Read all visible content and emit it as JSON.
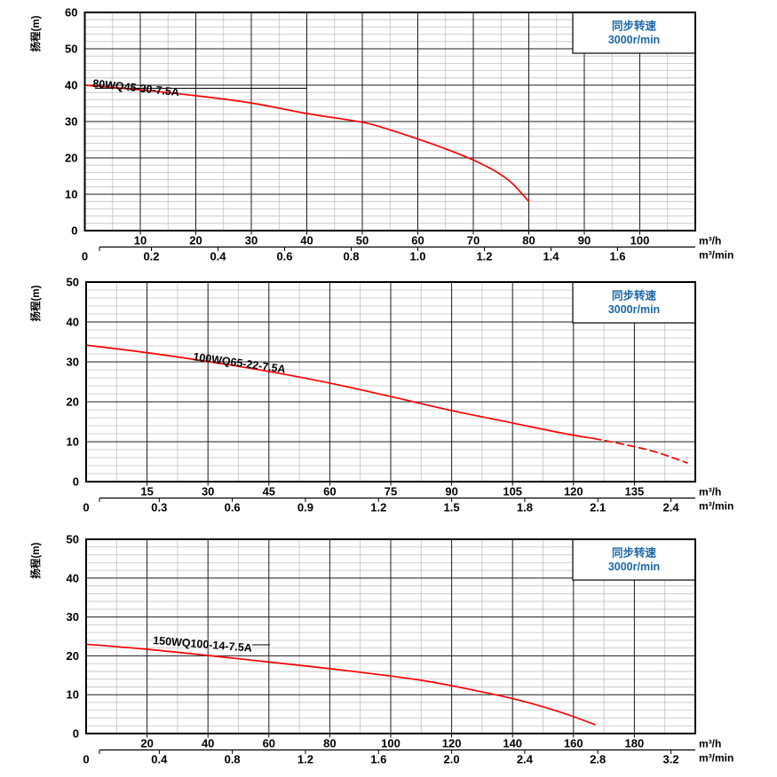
{
  "page": {
    "background": "#ffffff"
  },
  "colors": {
    "curve_red": "#ff0000",
    "grid_major": "#1c1c1c",
    "grid_minor": "#c0c0c0",
    "border": "#000000",
    "accent_blue": "#1a67a5",
    "text": "#000000"
  },
  "chart_data": [
    {
      "type": "line",
      "title": "80WQ45-30-7.5A",
      "ylabel": "扬程(m)",
      "xlabel_primary": "m³/h",
      "xlabel_secondary": "m³/min",
      "annotation": {
        "line1": "同步转速",
        "line2": "3000r/min"
      },
      "xlim": [
        0,
        110
      ],
      "ylim": [
        0,
        60
      ],
      "x_major_step": 10,
      "x_minor_step": 5,
      "y_major_step": 10,
      "y_minor_step": 2,
      "y_ticks": [
        60,
        50,
        40,
        30,
        20,
        10,
        0
      ],
      "x_ticks_primary": [
        10,
        20,
        30,
        40,
        50,
        60,
        70,
        80,
        90,
        100
      ],
      "x_ticks_secondary": [
        "0",
        "0.2",
        "0.4",
        "0.6",
        "0.8",
        "1.0",
        "1.2",
        "1.4",
        "1.6"
      ],
      "secondary_to_primary_factor": 60,
      "grid": "on",
      "series": [
        {
          "name": "80WQ45-30-7.5A",
          "color": "#ff0000",
          "segments": [
            {
              "style": "solid",
              "points": [
                [
                  0,
                  40
                ],
                [
                  10,
                  38.7
                ],
                [
                  20,
                  37.1
                ],
                [
                  30,
                  35.1
                ],
                [
                  40,
                  32.2
                ],
                [
                  50,
                  29.8
                ],
                [
                  55,
                  27.7
                ],
                [
                  60,
                  25.2
                ],
                [
                  65,
                  22.5
                ],
                [
                  70,
                  19.4
                ],
                [
                  74,
                  16.3
                ],
                [
                  77,
                  13
                ],
                [
                  80,
                  8
                ]
              ]
            }
          ]
        }
      ]
    },
    {
      "type": "line",
      "title": "100WQ65-22-7.5A",
      "ylabel": "扬程(m)",
      "xlabel_primary": "m³/h",
      "xlabel_secondary": "m³/min",
      "annotation": {
        "line1": "同步转速",
        "line2": "3000r/min"
      },
      "xlim": [
        0,
        150
      ],
      "ylim": [
        0,
        50
      ],
      "x_major_step": 15,
      "x_minor_step": 7.5,
      "y_major_step": 10,
      "y_minor_step": 2,
      "y_ticks": [
        50,
        40,
        30,
        20,
        10,
        0
      ],
      "x_ticks_primary": [
        15,
        30,
        45,
        60,
        75,
        90,
        105,
        120,
        135
      ],
      "x_ticks_secondary": [
        "0",
        "0.3",
        "0.6",
        "0.9",
        "1.2",
        "1.5",
        "1.8",
        "2.1",
        "2.4"
      ],
      "secondary_to_primary_factor": 60,
      "grid": "on",
      "series": [
        {
          "name": "100WQ65-22-7.5A",
          "color": "#ff0000",
          "segments": [
            {
              "style": "solid",
              "points": [
                [
                  0,
                  34.2
                ],
                [
                  15,
                  32.3
                ],
                [
                  30,
                  30.1
                ],
                [
                  45,
                  27.6
                ],
                [
                  60,
                  24.7
                ],
                [
                  75,
                  21.3
                ],
                [
                  90,
                  17.8
                ],
                [
                  105,
                  14.7
                ],
                [
                  118,
                  12
                ],
                [
                  125,
                  10.8
                ]
              ]
            },
            {
              "style": "dashed",
              "points": [
                [
                  125,
                  10.8
                ],
                [
                  133,
                  9.2
                ],
                [
                  140,
                  7.5
                ],
                [
                  148,
                  4.7
                ]
              ]
            }
          ]
        }
      ]
    },
    {
      "type": "line",
      "title": "150WQ100-14-7.5A",
      "ylabel": "扬程(m)",
      "xlabel_primary": "m³/h",
      "xlabel_secondary": "m³/min",
      "annotation": {
        "line1": "同步转速",
        "line2": "3000r/min"
      },
      "xlim": [
        0,
        200
      ],
      "ylim": [
        0,
        50
      ],
      "x_major_step": 20,
      "x_minor_step": 10,
      "y_major_step": 10,
      "y_minor_step": 2,
      "y_ticks": [
        50,
        40,
        30,
        20,
        10,
        0
      ],
      "x_ticks_primary": [
        20,
        40,
        60,
        80,
        100,
        120,
        140,
        160,
        180
      ],
      "x_ticks_secondary": [
        "0",
        "0.4",
        "0.8",
        "1.2",
        "1.6",
        "2.0",
        "2.4",
        "2.8",
        "3.2"
      ],
      "secondary_to_primary_factor": 60,
      "grid": "on",
      "series": [
        {
          "name": "150WQ100-14-7.5A",
          "color": "#ff0000",
          "segments": [
            {
              "style": "solid",
              "points": [
                [
                  0,
                  23
                ],
                [
                  20,
                  21.7
                ],
                [
                  40,
                  20.1
                ],
                [
                  60,
                  18.4
                ],
                [
                  80,
                  16.7
                ],
                [
                  100,
                  14.8
                ],
                [
                  110,
                  13.7
                ],
                [
                  120,
                  12.3
                ],
                [
                  130,
                  10.7
                ],
                [
                  140,
                  9
                ],
                [
                  150,
                  6.9
                ],
                [
                  158,
                  4.9
                ],
                [
                  167,
                  2.3
                ]
              ]
            }
          ]
        }
      ]
    }
  ]
}
